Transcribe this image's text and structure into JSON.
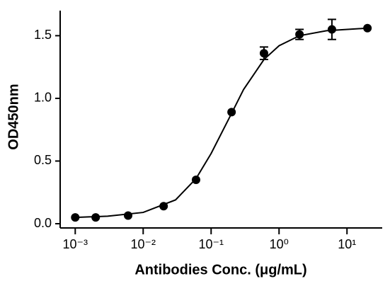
{
  "chart_data": {
    "type": "scatter",
    "xlabel": "Antibodies Conc. (μg/mL)",
    "ylabel": "OD450nm",
    "xscale": "log",
    "xlim": [
      0.0006,
      33
    ],
    "ylim": [
      0,
      1.7
    ],
    "xticks": [
      {
        "value": 0.001,
        "label": "10⁻³"
      },
      {
        "value": 0.01,
        "label": "10⁻²"
      },
      {
        "value": 0.1,
        "label": "10⁻¹"
      },
      {
        "value": 1,
        "label": "10⁰"
      },
      {
        "value": 10,
        "label": "10¹"
      }
    ],
    "yticks": [
      {
        "value": 0,
        "label": "0.0"
      },
      {
        "value": 0.5,
        "label": "0.5"
      },
      {
        "value": 1,
        "label": "1.0"
      },
      {
        "value": 1.5,
        "label": "1.5"
      }
    ],
    "color": "#000000",
    "x": [
      0.001,
      0.002,
      0.006,
      0.02,
      0.06,
      0.2,
      0.6,
      2,
      6,
      20
    ],
    "values": [
      0.05,
      0.05,
      0.065,
      0.14,
      0.35,
      0.89,
      1.36,
      1.51,
      1.55,
      1.56
    ],
    "errors": [
      0,
      0,
      0,
      0,
      0,
      0,
      0.05,
      0.04,
      0.08,
      0
    ],
    "fit": {
      "x": [
        0.001,
        0.003,
        0.01,
        0.03,
        0.06,
        0.1,
        0.2,
        0.3,
        0.6,
        1,
        2,
        5,
        20
      ],
      "values": [
        0.05,
        0.06,
        0.09,
        0.19,
        0.36,
        0.56,
        0.88,
        1.07,
        1.31,
        1.42,
        1.5,
        1.54,
        1.56
      ]
    }
  }
}
